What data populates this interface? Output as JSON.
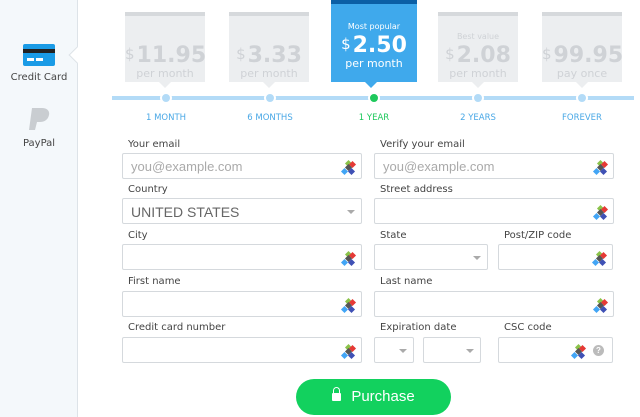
{
  "sidebar": {
    "items": [
      {
        "label": "Credit Card",
        "icon": "credit-card-icon",
        "active": true
      },
      {
        "label": "PayPal",
        "icon": "paypal-icon",
        "active": false
      }
    ]
  },
  "plans": [
    {
      "tag": "",
      "currency": "$",
      "price": "11.95",
      "period": "per month",
      "label": "1 MONTH",
      "selected": false
    },
    {
      "tag": "",
      "currency": "$",
      "price": "3.33",
      "period": "per month",
      "label": "6 MONTHS",
      "selected": false
    },
    {
      "tag": "Most popular",
      "currency": "$",
      "price": "2.50",
      "period": "per month",
      "label": "1 YEAR",
      "selected": true
    },
    {
      "tag": "Best value",
      "currency": "$",
      "price": "2.08",
      "period": "per month",
      "label": "2 YEARS",
      "selected": false
    },
    {
      "tag": "",
      "currency": "$",
      "price": "99.95",
      "period": "pay once",
      "label": "FOREVER",
      "selected": false
    }
  ],
  "form": {
    "email": {
      "label": "Your email",
      "placeholder": "you@example.com"
    },
    "verify_email": {
      "label": "Verify your email",
      "placeholder": "you@example.com"
    },
    "country": {
      "label": "Country",
      "value": "UNITED STATES"
    },
    "street": {
      "label": "Street address"
    },
    "city": {
      "label": "City"
    },
    "state": {
      "label": "State"
    },
    "zip": {
      "label": "Post/ZIP code"
    },
    "first_name": {
      "label": "First name"
    },
    "last_name": {
      "label": "Last name"
    },
    "card_number": {
      "label": "Credit card number"
    },
    "expiration": {
      "label": "Expiration date"
    },
    "csc": {
      "label": "CSC code",
      "help": "?"
    }
  },
  "purchase_label": "Purchase",
  "colors": {
    "accent": "#3fa9ec",
    "selected": "#1ec85c",
    "button": "#12d15e"
  }
}
